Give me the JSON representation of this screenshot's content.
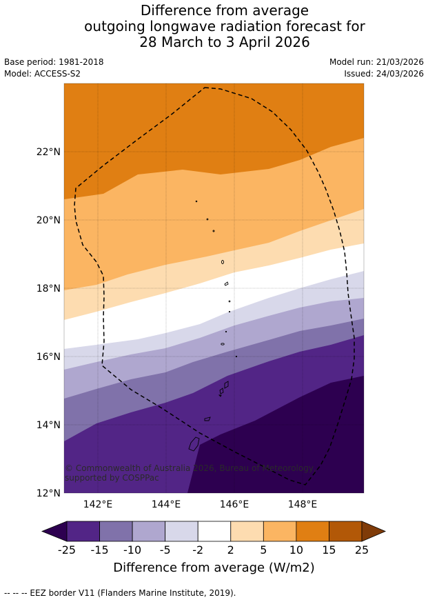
{
  "title": {
    "line1": "Difference from average",
    "line2": "outgoing longwave radiation forecast for",
    "line3": "28 March to 3 April 2026"
  },
  "meta": {
    "base_period": "Base period: 1981-2018",
    "model": "Model: ACCESS-S2",
    "model_run": "Model run: 21/03/2026",
    "issued": "Issued: 24/03/2026"
  },
  "map": {
    "lat_labels": [
      "22°N",
      "20°N",
      "18°N",
      "16°N",
      "14°N",
      "12°N"
    ],
    "lon_labels": [
      "142°E",
      "144°E",
      "146°E",
      "148°E"
    ],
    "copyright": "© Commonwealth of Australia 2026, Bureau of Meteorology, supported by COSPPac"
  },
  "colorbar": {
    "ticks": [
      "-25",
      "-15",
      "-10",
      "-5",
      "-2",
      "2",
      "5",
      "10",
      "15",
      "25"
    ],
    "colors": [
      "#2d0050",
      "#522586",
      "#8072aa",
      "#afa7cf",
      "#d8d8ea",
      "#ffffff",
      "#fddcb0",
      "#fbb562",
      "#e07f13",
      "#b25807",
      "#7f3b08"
    ],
    "label": "Difference from average (W/m2)"
  },
  "legend": {
    "eez_note": "--  --  -- EEZ border V11 (Flanders Marine Institute, 2019)."
  }
}
